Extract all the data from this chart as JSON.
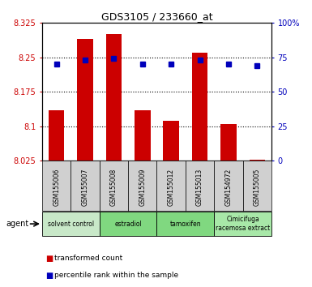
{
  "title": "GDS3105 / 233660_at",
  "samples": [
    "GSM155006",
    "GSM155007",
    "GSM155008",
    "GSM155009",
    "GSM155012",
    "GSM155013",
    "GSM154972",
    "GSM155005"
  ],
  "transformed_counts": [
    8.135,
    8.29,
    8.3,
    8.135,
    8.112,
    8.26,
    8.105,
    8.028
  ],
  "percentile_ranks": [
    70,
    73,
    74,
    70,
    70,
    73,
    70,
    69
  ],
  "bar_bottom": 8.025,
  "ylim_left": [
    8.025,
    8.325
  ],
  "ylim_right": [
    0,
    100
  ],
  "yticks_left": [
    8.025,
    8.1,
    8.175,
    8.25,
    8.325
  ],
  "yticks_right": [
    0,
    25,
    50,
    75,
    100
  ],
  "ytick_labels_left": [
    "8.025",
    "8.1",
    "8.175",
    "8.25",
    "8.325"
  ],
  "ytick_labels_right": [
    "0",
    "25",
    "50",
    "75",
    "100%"
  ],
  "agent_groups": [
    {
      "label": "solvent control",
      "indices": [
        0,
        1
      ],
      "color": "#c8e8c8"
    },
    {
      "label": "estradiol",
      "indices": [
        2,
        3
      ],
      "color": "#80d880"
    },
    {
      "label": "tamoxifen",
      "indices": [
        4,
        5
      ],
      "color": "#80d880"
    },
    {
      "label": "Cimicifuga\nracemosa extract",
      "indices": [
        6,
        7
      ],
      "color": "#a8e8a8"
    }
  ],
  "bar_color": "#cc0000",
  "dot_color": "#0000bb",
  "plot_bg_color": "#ffffff",
  "left_axis_color": "#cc0000",
  "right_axis_color": "#0000bb",
  "legend_bar_label": "transformed count",
  "legend_dot_label": "percentile rank within the sample",
  "gridline_ticks": [
    8.1,
    8.175,
    8.25
  ]
}
